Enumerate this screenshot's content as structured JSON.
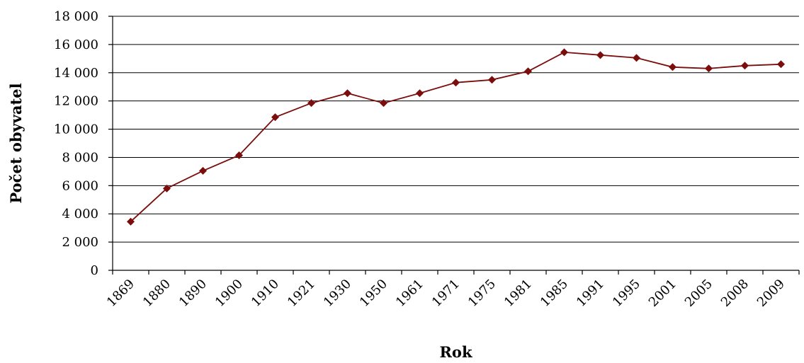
{
  "chart_data": {
    "type": "line",
    "title": "",
    "xlabel": "Rok",
    "ylabel": "Počet obyvatel",
    "ylim": [
      0,
      18000
    ],
    "ytick_labels": [
      "0",
      "2 000",
      "4 000",
      "6 000",
      "8 000",
      "10 000",
      "12 000",
      "14 000",
      "16 000",
      "18 000"
    ],
    "categories": [
      "1869",
      "1880",
      "1890",
      "1900",
      "1910",
      "1921",
      "1930",
      "1950",
      "1961",
      "1971",
      "1975",
      "1981",
      "1985",
      "1991",
      "1995",
      "2001",
      "2005",
      "2008",
      "2009"
    ],
    "series": [
      {
        "values": [
          3450,
          5800,
          7050,
          8150,
          10850,
          11850,
          12550,
          11850,
          12550,
          13300,
          13500,
          14100,
          15450,
          15250,
          15050,
          14400,
          14300,
          14500,
          14600
        ]
      }
    ],
    "grid": "horizontal",
    "legend": "none",
    "colors": {
      "series": "#7b0d0d",
      "grid": "#000000"
    }
  }
}
